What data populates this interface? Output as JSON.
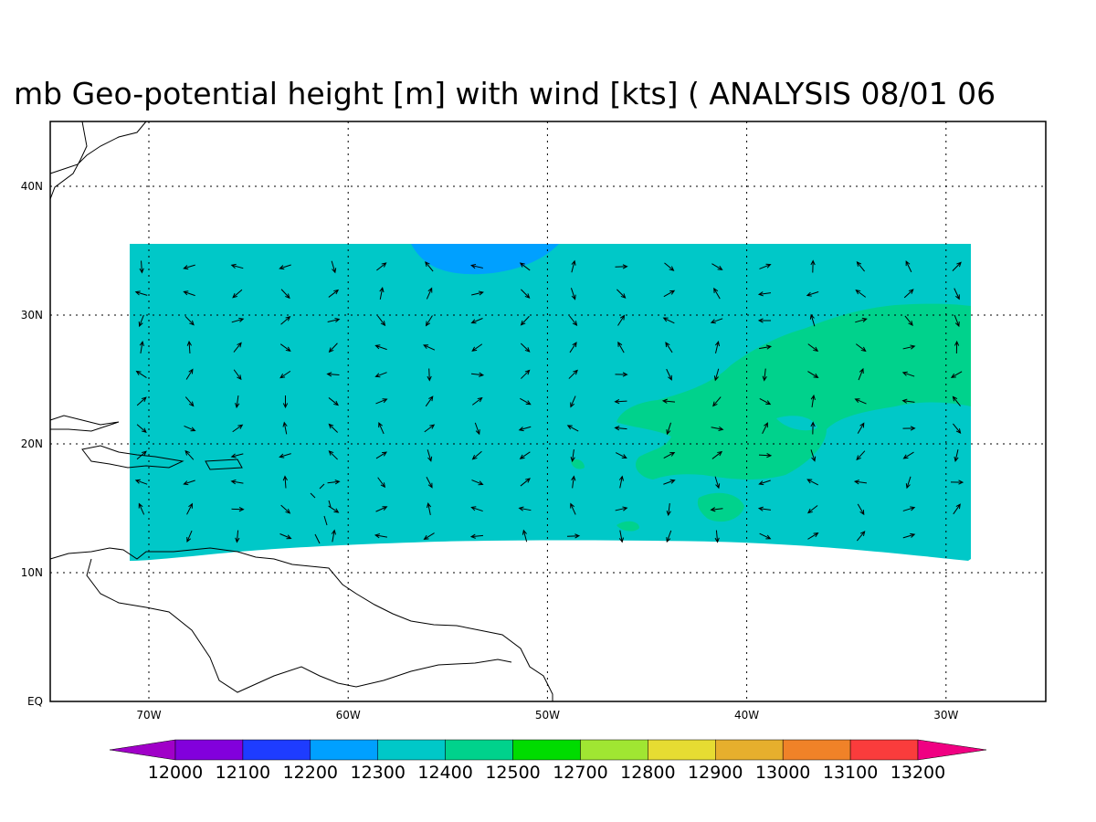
{
  "map": {
    "title": "mb Geo-potential height [m] with wind [kts] ( ANALYSIS 08/01 06",
    "lon_labels": [
      "70W",
      "60W",
      "50W",
      "40W",
      "30W"
    ],
    "lat_labels": [
      "EQ",
      "10N",
      "20N",
      "30N",
      "40N"
    ],
    "colorbar": {
      "levels": [
        12000,
        12100,
        12200,
        12300,
        12400,
        12500,
        12700,
        12800,
        12900,
        13000,
        13100,
        13200
      ],
      "colors": [
        "#a000c8",
        "#8200dc",
        "#1e3cff",
        "#00a0ff",
        "#00c8c8",
        "#00d28c",
        "#00dc00",
        "#a0e632",
        "#e6dc32",
        "#e6af2d",
        "#f08228",
        "#fa3c3c",
        "#f00082"
      ]
    }
  }
}
